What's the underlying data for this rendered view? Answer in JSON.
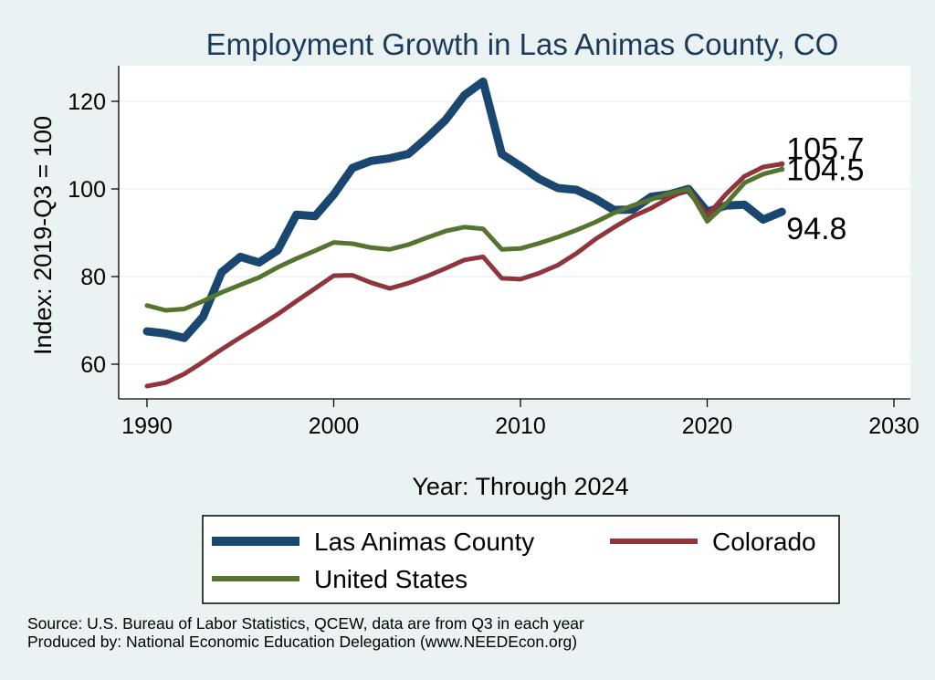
{
  "chart_data": {
    "type": "line",
    "title": "Employment Growth in Las Animas County, CO",
    "xlabel": "Year: Through 2024",
    "ylabel": "Index: 2019-Q3 = 100",
    "xlim": [
      1990,
      2030
    ],
    "ylim": [
      50,
      128
    ],
    "x_ticks": [
      1990,
      2000,
      2010,
      2020,
      2030
    ],
    "y_ticks": [
      60,
      80,
      100,
      120
    ],
    "grid": "horizontal",
    "legend_placement": "bottom",
    "x": [
      1990,
      1991,
      1992,
      1993,
      1994,
      1995,
      1996,
      1997,
      1998,
      1999,
      2000,
      2001,
      2002,
      2003,
      2004,
      2005,
      2006,
      2007,
      2008,
      2009,
      2010,
      2011,
      2012,
      2013,
      2014,
      2015,
      2016,
      2017,
      2018,
      2019,
      2020,
      2021,
      2022,
      2023,
      2024
    ],
    "series": [
      {
        "name": "Las Animas  County",
        "color": "#1a476f",
        "width": 9,
        "values": [
          67.5,
          67.0,
          66.0,
          70.8,
          81.0,
          84.5,
          83.2,
          86.0,
          94.1,
          93.8,
          98.7,
          104.8,
          106.4,
          107.0,
          108.0,
          111.7,
          115.8,
          121.4,
          124.5,
          108.0,
          105.2,
          102.3,
          100.2,
          99.8,
          97.8,
          95.2,
          95.3,
          98.2,
          98.8,
          100.0,
          94.8,
          96.2,
          96.4,
          93.0,
          94.8
        ],
        "end_label": "94.8"
      },
      {
        "name": "Colorado",
        "color": "#90353b",
        "width": 5,
        "values": [
          55.0,
          55.8,
          57.8,
          60.5,
          63.4,
          66.1,
          68.7,
          71.4,
          74.4,
          77.3,
          80.2,
          80.3,
          78.6,
          77.3,
          78.5,
          80.1,
          81.9,
          83.8,
          84.5,
          79.6,
          79.4,
          80.8,
          82.6,
          85.3,
          88.5,
          91.2,
          93.7,
          95.6,
          98.0,
          100.0,
          93.9,
          98.8,
          102.9,
          105.0,
          105.7
        ],
        "end_label": "105.7"
      },
      {
        "name": "United States",
        "color": "#55752f",
        "width": 5,
        "values": [
          73.4,
          72.3,
          72.6,
          74.4,
          76.4,
          78.1,
          79.8,
          82.1,
          84.1,
          85.9,
          87.8,
          87.5,
          86.6,
          86.2,
          87.3,
          88.9,
          90.4,
          91.3,
          90.9,
          86.2,
          86.4,
          87.6,
          89.0,
          90.6,
          92.4,
          94.5,
          96.2,
          97.6,
          99.0,
          100.0,
          92.6,
          96.6,
          101.4,
          103.4,
          104.5
        ],
        "end_label": "104.5"
      }
    ]
  },
  "source_lines": [
    "Source: U.S. Bureau of Labor Statistics, QCEW, data are from Q3 in each year",
    "Produced by: National Economic Education Delegation (www.NEEDEcon.org)"
  ]
}
